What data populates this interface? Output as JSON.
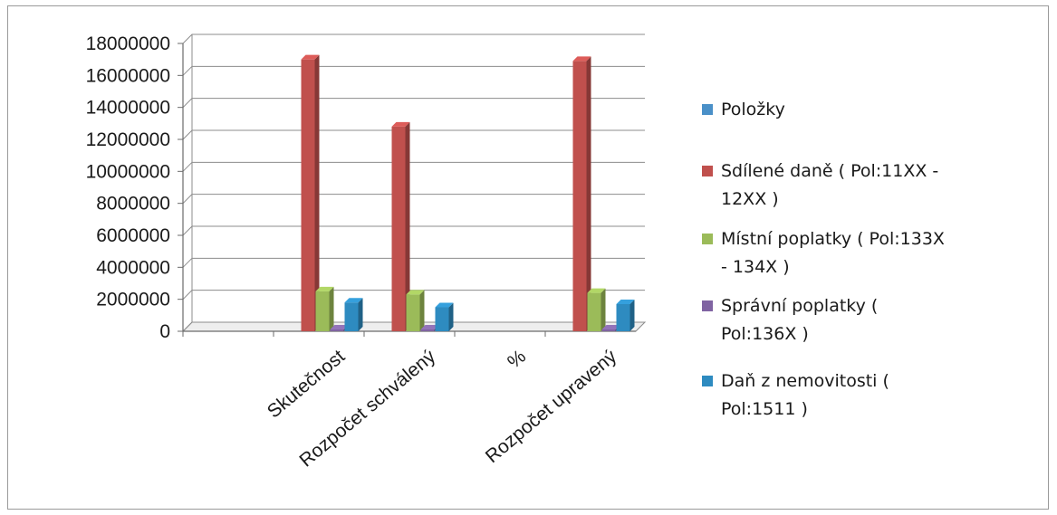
{
  "chart_data": {
    "type": "bar",
    "title": "",
    "xlabel": "",
    "ylabel": "",
    "ylim": [
      0,
      18000000
    ],
    "yticks": [
      0,
      2000000,
      4000000,
      6000000,
      8000000,
      10000000,
      12000000,
      14000000,
      16000000,
      18000000
    ],
    "grid": true,
    "legend_position": "right",
    "categories": [
      "",
      "Skutečnost",
      "Rozpočet schválený",
      "%",
      "Rozpočet upravený"
    ],
    "series": [
      {
        "name": "Položky",
        "color": "#4a90c8",
        "values": [
          0,
          0,
          0,
          0,
          0
        ]
      },
      {
        "name": "Sdílené daně ( Pol:11XX - 12XX )",
        "color": "#c0504d",
        "values": [
          0,
          17000000,
          12800000,
          0,
          16900000
        ]
      },
      {
        "name": "Místní poplatky ( Pol:133X - 134X )",
        "color": "#9bbb59",
        "values": [
          0,
          2500000,
          2300000,
          0,
          2400000
        ]
      },
      {
        "name": "Správní poplatky ( Pol:136X )",
        "color": "#8064a2",
        "values": [
          0,
          50000,
          40000,
          0,
          50000
        ]
      },
      {
        "name": "Daň z nemovitosti ( Pol:1511 )",
        "color": "#2e8bc0",
        "values": [
          0,
          1800000,
          1500000,
          0,
          1700000
        ]
      }
    ],
    "legend_lines": [
      [
        "Položky"
      ],
      [
        "Sdílené daně ( Pol:11XX -",
        "12XX )"
      ],
      [
        "Místní poplatky ( Pol:133X",
        "- 134X )"
      ],
      [
        "Správní poplatky (",
        "Pol:136X )"
      ],
      [
        "Daň z nemovitosti (",
        "Pol:1511 )"
      ]
    ]
  }
}
